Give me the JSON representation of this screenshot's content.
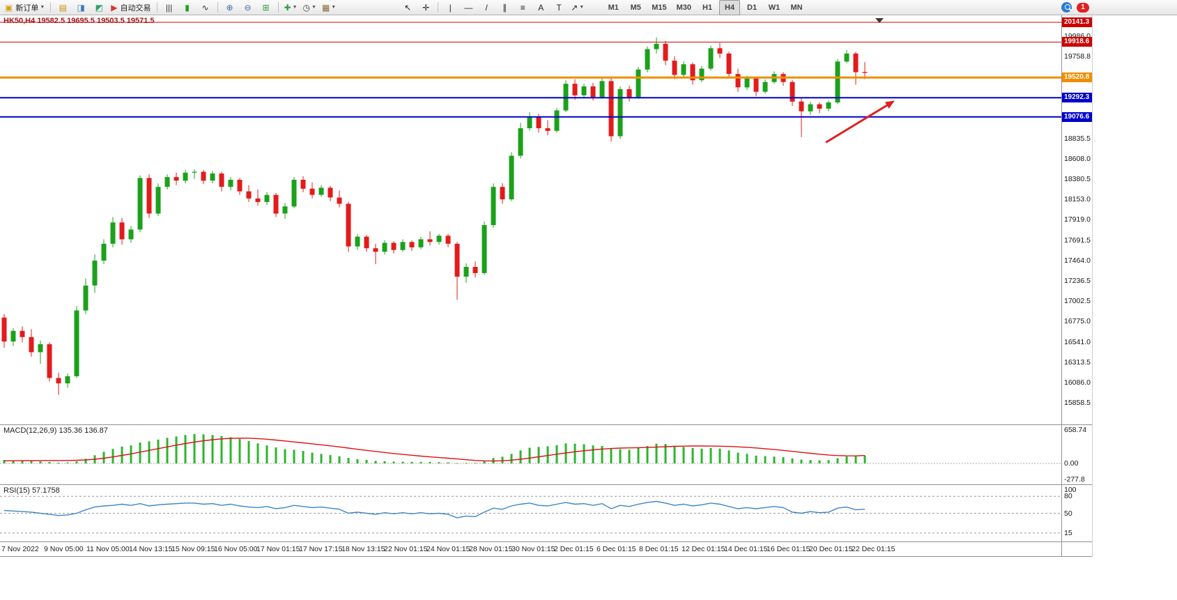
{
  "toolbar": {
    "items": [
      {
        "type": "labeled",
        "name": "new-order-button",
        "icon": "new-order-icon",
        "glyph": "▣",
        "color": "#d4a017",
        "label": "新订单",
        "caret": true
      },
      {
        "type": "sep"
      },
      {
        "type": "icon",
        "name": "market-watch-icon",
        "glyph": "▤",
        "color": "#c8960c"
      },
      {
        "type": "icon",
        "name": "navigator-icon",
        "glyph": "◨",
        "color": "#3a78c2"
      },
      {
        "type": "icon",
        "name": "terminal-icon",
        "glyph": "◩",
        "color": "#2fa06a"
      },
      {
        "type": "labeled",
        "name": "autotrade-button",
        "icon": "autotrade-icon",
        "glyph": "▶",
        "color": "#cf3a2b",
        "label": "自动交易",
        "caret": false
      },
      {
        "type": "sep"
      },
      {
        "type": "icon",
        "name": "bar-chart-icon",
        "glyph": "|||",
        "color": "#333333"
      },
      {
        "type": "icon",
        "name": "candlestick-chart-icon",
        "glyph": "▮",
        "color": "#1ba11b"
      },
      {
        "type": "icon",
        "name": "line-chart-icon",
        "glyph": "∿",
        "color": "#333333"
      },
      {
        "type": "sep"
      },
      {
        "type": "icon",
        "name": "zoom-in-icon",
        "glyph": "⊕",
        "color": "#3a6ea5"
      },
      {
        "type": "icon",
        "name": "zoom-out-icon",
        "glyph": "⊖",
        "color": "#3a6ea5"
      },
      {
        "type": "icon",
        "name": "tile-windows-icon",
        "glyph": "⊞",
        "color": "#2f9e44"
      },
      {
        "type": "sep"
      },
      {
        "type": "icon-caret",
        "name": "indicators-icon",
        "glyph": "✚",
        "color": "#2f9e44"
      },
      {
        "type": "icon-caret",
        "name": "periods-icon",
        "glyph": "◷",
        "color": "#444444"
      },
      {
        "type": "icon-caret",
        "name": "templates-icon",
        "glyph": "▦",
        "color": "#8a6d3b"
      },
      {
        "type": "gap",
        "w": 86
      },
      {
        "type": "icon",
        "name": "cursor-icon",
        "glyph": "↖",
        "color": "#222222"
      },
      {
        "type": "icon",
        "name": "crosshair-icon",
        "glyph": "✛",
        "color": "#222222"
      },
      {
        "type": "sep"
      },
      {
        "type": "icon",
        "name": "vertical-line-icon",
        "glyph": "|",
        "color": "#222222"
      },
      {
        "type": "icon",
        "name": "horizontal-line-icon",
        "glyph": "—",
        "color": "#222222"
      },
      {
        "type": "icon",
        "name": "trendline-icon",
        "glyph": "/",
        "color": "#222222"
      },
      {
        "type": "icon",
        "name": "channel-icon",
        "glyph": "∥",
        "color": "#222222"
      },
      {
        "type": "icon",
        "name": "fibonacci-icon",
        "glyph": "≡",
        "color": "#222222"
      },
      {
        "type": "icon",
        "name": "text-icon",
        "glyph": "A",
        "color": "#222222"
      },
      {
        "type": "icon",
        "name": "label-icon",
        "glyph": "T",
        "color": "#222222"
      },
      {
        "type": "icon-caret",
        "name": "arrows-icon",
        "glyph": "↗",
        "color": "#222222"
      },
      {
        "type": "gap",
        "w": 22
      },
      {
        "type": "timeframes"
      }
    ],
    "timeframes": [
      "M1",
      "M5",
      "M15",
      "M30",
      "H1",
      "H4",
      "D1",
      "W1",
      "MN"
    ],
    "active_timeframe": "H4",
    "notification_count": "1"
  },
  "chart_data": {
    "type": "candlestick",
    "symbol": "HK50,H4",
    "ohlc_header": "19582.5 19695.5 19503.5 19571.5",
    "timeframe": "H4",
    "grid": false,
    "colors": {
      "up": "#1ba11b",
      "down": "#e31b1b",
      "macd_hist": "#2db52d",
      "macd_signal": "#dd1111",
      "rsi_line": "#3e85c6"
    },
    "y_ticks": [
      {
        "label": "19986.0",
        "value": 19986.0
      },
      {
        "label": "19758.8",
        "value": 19758.8
      },
      {
        "label": "18835.5",
        "value": 18835.5
      },
      {
        "label": "18608.0",
        "value": 18608.0
      },
      {
        "label": "18380.5",
        "value": 18380.5
      },
      {
        "label": "18153.0",
        "value": 18153.0
      },
      {
        "label": "17919.0",
        "value": 17919.0
      },
      {
        "label": "17691.5",
        "value": 17691.5
      },
      {
        "label": "17464.0",
        "value": 17464.0
      },
      {
        "label": "17236.5",
        "value": 17236.5
      },
      {
        "label": "17002.5",
        "value": 17002.5
      },
      {
        "label": "16775.0",
        "value": 16775.0
      },
      {
        "label": "16541.0",
        "value": 16541.0
      },
      {
        "label": "16313.5",
        "value": 16313.5
      },
      {
        "label": "16086.0",
        "value": 16086.0
      },
      {
        "label": "15858.5",
        "value": 15858.5
      }
    ],
    "hlines": [
      {
        "price": 20141.3,
        "label": "20141.3",
        "color": "#cc0000",
        "width": 1
      },
      {
        "price": 19918.6,
        "label": "19918.6",
        "color": "#cc0000",
        "width": 1
      },
      {
        "price": 19520.8,
        "label": "19520.8",
        "color": "#ef8e00",
        "width": 3
      },
      {
        "price": 19292.3,
        "label": "19292.3",
        "color": "#0000cc",
        "width": 2
      },
      {
        "price": 19076.6,
        "label": "19076.6",
        "color": "#0000cc",
        "width": 2
      }
    ],
    "arrow": {
      "from_i": 90.7,
      "from_price": 18790,
      "to_i": 98.3,
      "to_price": 19260,
      "color": "#e02020"
    },
    "x_labels": [
      "7 Nov 2022",
      "9 Nov 05:00",
      "11 Nov 05:00",
      "14 Nov 13:15",
      "15 Nov 09:15",
      "16 Nov 05:00",
      "17 Nov 01:15",
      "17 Nov 17:15",
      "18 Nov 13:15",
      "22 Nov 01:15",
      "24 Nov 01:15",
      "28 Nov 01:15",
      "30 Nov 01:15",
      "2 Dec 01:15",
      "6 Dec 01:15",
      "8 Dec 01:15",
      "12 Dec 01:15",
      "14 Dec 01:15",
      "16 Dec 01:15",
      "20 Dec 01:15",
      "22 Dec 01:15"
    ],
    "candles": [
      [
        16820,
        16860,
        16480,
        16550
      ],
      [
        16550,
        16700,
        16500,
        16670
      ],
      [
        16670,
        16720,
        16540,
        16600
      ],
      [
        16600,
        16690,
        16380,
        16430
      ],
      [
        16430,
        16560,
        16300,
        16520
      ],
      [
        16520,
        16540,
        16100,
        16140
      ],
      [
        16140,
        16200,
        15950,
        16080
      ],
      [
        16080,
        16190,
        16030,
        16160
      ],
      [
        16160,
        16950,
        16140,
        16900
      ],
      [
        16900,
        17260,
        16860,
        17180
      ],
      [
        17180,
        17530,
        17100,
        17460
      ],
      [
        17460,
        17700,
        17420,
        17650
      ],
      [
        17650,
        17950,
        17610,
        17890
      ],
      [
        17890,
        17940,
        17640,
        17700
      ],
      [
        17700,
        17850,
        17660,
        17810
      ],
      [
        17810,
        18420,
        17780,
        18390
      ],
      [
        18390,
        18430,
        17940,
        17990
      ],
      [
        17990,
        18330,
        17960,
        18290
      ],
      [
        18290,
        18430,
        18260,
        18400
      ],
      [
        18400,
        18450,
        18310,
        18360
      ],
      [
        18360,
        18480,
        18330,
        18450
      ],
      [
        18450,
        18490,
        18380,
        18460
      ],
      [
        18460,
        18480,
        18320,
        18360
      ],
      [
        18360,
        18470,
        18330,
        18440
      ],
      [
        18440,
        18460,
        18240,
        18290
      ],
      [
        18290,
        18400,
        18250,
        18370
      ],
      [
        18370,
        18390,
        18200,
        18240
      ],
      [
        18240,
        18310,
        18120,
        18160
      ],
      [
        18160,
        18260,
        18080,
        18120
      ],
      [
        18120,
        18230,
        18090,
        18200
      ],
      [
        18200,
        18220,
        17950,
        17990
      ],
      [
        17990,
        18110,
        17930,
        18070
      ],
      [
        18070,
        18400,
        18050,
        18370
      ],
      [
        18370,
        18410,
        18230,
        18270
      ],
      [
        18270,
        18340,
        18160,
        18200
      ],
      [
        18200,
        18310,
        18180,
        18280
      ],
      [
        18280,
        18300,
        18130,
        18170
      ],
      [
        18170,
        18250,
        18060,
        18100
      ],
      [
        18100,
        18120,
        17560,
        17620
      ],
      [
        17620,
        17760,
        17580,
        17730
      ],
      [
        17730,
        17750,
        17560,
        17600
      ],
      [
        17600,
        17650,
        17420,
        17560
      ],
      [
        17560,
        17690,
        17530,
        17660
      ],
      [
        17660,
        17680,
        17540,
        17580
      ],
      [
        17580,
        17700,
        17560,
        17670
      ],
      [
        17670,
        17690,
        17570,
        17610
      ],
      [
        17610,
        17730,
        17590,
        17700
      ],
      [
        17700,
        17790,
        17630,
        17670
      ],
      [
        17670,
        17760,
        17640,
        17740
      ],
      [
        17740,
        17760,
        17610,
        17650
      ],
      [
        17650,
        17670,
        17020,
        17280
      ],
      [
        17280,
        17430,
        17210,
        17390
      ],
      [
        17390,
        17450,
        17270,
        17320
      ],
      [
        17320,
        17900,
        17300,
        17860
      ],
      [
        17860,
        18330,
        17830,
        18290
      ],
      [
        18290,
        18330,
        18100,
        18150
      ],
      [
        18150,
        18680,
        18130,
        18640
      ],
      [
        18640,
        19010,
        18610,
        18950
      ],
      [
        18950,
        19130,
        18920,
        19080
      ],
      [
        19080,
        19110,
        18900,
        18950
      ],
      [
        18950,
        19040,
        18870,
        18920
      ],
      [
        18920,
        19180,
        18900,
        19150
      ],
      [
        19150,
        19490,
        19130,
        19450
      ],
      [
        19450,
        19500,
        19270,
        19320
      ],
      [
        19320,
        19450,
        19290,
        19420
      ],
      [
        19420,
        19460,
        19260,
        19300
      ],
      [
        19300,
        19510,
        19280,
        19480
      ],
      [
        19480,
        19520,
        18800,
        18860
      ],
      [
        18860,
        19420,
        18830,
        19390
      ],
      [
        19390,
        19430,
        19250,
        19300
      ],
      [
        19300,
        19640,
        19280,
        19610
      ],
      [
        19610,
        19870,
        19580,
        19840
      ],
      [
        19840,
        19970,
        19790,
        19900
      ],
      [
        19900,
        19930,
        19660,
        19710
      ],
      [
        19710,
        19760,
        19500,
        19550
      ],
      [
        19550,
        19700,
        19520,
        19670
      ],
      [
        19670,
        19690,
        19440,
        19490
      ],
      [
        19490,
        19650,
        19470,
        19620
      ],
      [
        19620,
        19880,
        19600,
        19850
      ],
      [
        19850,
        19910,
        19740,
        19790
      ],
      [
        19790,
        19810,
        19510,
        19560
      ],
      [
        19560,
        19620,
        19360,
        19410
      ],
      [
        19410,
        19540,
        19380,
        19510
      ],
      [
        19510,
        19530,
        19310,
        19360
      ],
      [
        19360,
        19500,
        19340,
        19470
      ],
      [
        19470,
        19590,
        19450,
        19560
      ],
      [
        19560,
        19580,
        19430,
        19470
      ],
      [
        19470,
        19490,
        19200,
        19250
      ],
      [
        19250,
        19290,
        18850,
        19140
      ],
      [
        19140,
        19250,
        19100,
        19220
      ],
      [
        19220,
        19240,
        19120,
        19170
      ],
      [
        19170,
        19260,
        19140,
        19240
      ],
      [
        19240,
        19730,
        19220,
        19700
      ],
      [
        19700,
        19830,
        19680,
        19790
      ],
      [
        19790,
        19810,
        19440,
        19580
      ],
      [
        19582.5,
        19695.5,
        19503.5,
        19571.5
      ]
    ],
    "macd": {
      "title": "MACD(12,26,9)",
      "value_main": "135.36",
      "value_signal": "136.87",
      "y_labels": [
        {
          "label": "658.74",
          "value": 658.74
        },
        {
          "label": "0.00",
          "value": 0
        },
        {
          "label": "-277.8",
          "value": -277.8
        }
      ],
      "histogram": [
        60,
        50,
        45,
        40,
        35,
        25,
        15,
        18,
        35,
        80,
        140,
        200,
        250,
        290,
        310,
        360,
        380,
        410,
        440,
        465,
        490,
        505,
        500,
        490,
        470,
        450,
        420,
        385,
        345,
        310,
        275,
        245,
        235,
        215,
        185,
        165,
        145,
        125,
        95,
        75,
        60,
        45,
        38,
        33,
        30,
        28,
        26,
        25,
        22,
        18,
        6,
        10,
        9,
        45,
        95,
        115,
        165,
        225,
        270,
        285,
        295,
        315,
        345,
        340,
        330,
        310,
        300,
        255,
        245,
        235,
        265,
        300,
        340,
        335,
        305,
        285,
        265,
        255,
        265,
        255,
        225,
        185,
        165,
        135,
        125,
        118,
        108,
        85,
        65,
        58,
        52,
        56,
        90,
        120,
        128,
        135.36
      ],
      "signal": [
        45,
        46,
        47,
        48,
        49,
        50,
        50,
        51,
        54,
        60,
        72,
        90,
        112,
        138,
        165,
        195,
        225,
        255,
        285,
        315,
        342,
        368,
        390,
        408,
        422,
        432,
        436,
        434,
        427,
        416,
        402,
        386,
        370,
        354,
        337,
        320,
        302,
        284,
        264,
        244,
        225,
        206,
        188,
        171,
        155,
        140,
        126,
        113,
        101,
        90,
        77,
        64,
        52,
        44,
        42,
        46,
        56,
        72,
        92,
        114,
        136,
        158,
        180,
        200,
        218,
        234,
        247,
        257,
        264,
        268,
        271,
        275,
        281,
        288,
        294,
        298,
        300,
        300,
        299,
        297,
        293,
        286,
        277,
        266,
        253,
        239,
        224,
        208,
        191,
        174,
        158,
        145,
        136,
        131,
        130,
        136.87
      ]
    },
    "rsi": {
      "title": "RSI(15)",
      "value": "57.1758",
      "levels": [
        80,
        50,
        15
      ],
      "y_labels": [
        {
          "label": "100",
          "value": 100
        },
        {
          "label": "80",
          "value": 80
        },
        {
          "label": "50",
          "value": 50
        },
        {
          "label": "15",
          "value": 15
        }
      ],
      "series": [
        55,
        54,
        53,
        52,
        50,
        48,
        46,
        47,
        50,
        56,
        61,
        63,
        64,
        66,
        64,
        67,
        63,
        65,
        66,
        67,
        68,
        68,
        66,
        67,
        64,
        66,
        63,
        61,
        60,
        62,
        58,
        60,
        64,
        62,
        60,
        61,
        59,
        57,
        50,
        52,
        50,
        48,
        51,
        49,
        51,
        49,
        51,
        49,
        50,
        48,
        42,
        45,
        44,
        52,
        59,
        57,
        63,
        66,
        68,
        64,
        63,
        66,
        69,
        66,
        67,
        64,
        67,
        58,
        64,
        62,
        66,
        69,
        71,
        68,
        64,
        66,
        63,
        65,
        68,
        66,
        62,
        58,
        60,
        58,
        60,
        62,
        60,
        52,
        50,
        53,
        51,
        52,
        59,
        61,
        56,
        57.1758
      ]
    }
  }
}
